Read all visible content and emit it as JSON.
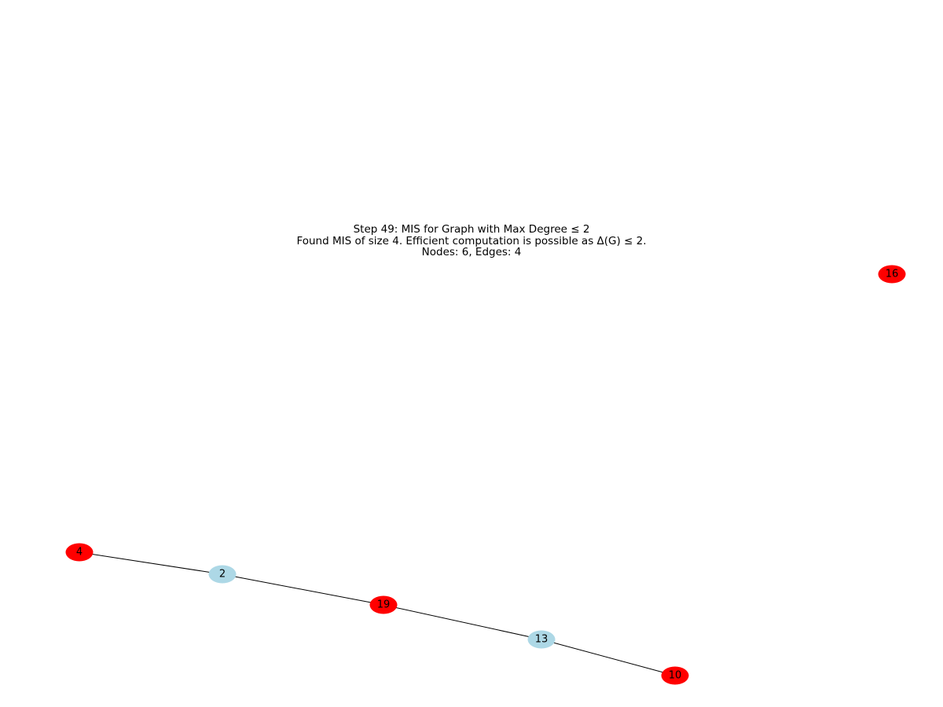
{
  "title": {
    "line1": "Step 49: MIS for Graph with Max Degree ≤ 2",
    "line2": "Found MIS of size 4. Efficient computation is possible as Δ(G) ≤ 2.",
    "line3": "Nodes: 6, Edges: 4"
  },
  "colors": {
    "mis_node": "#ff0000",
    "other_node": "#add8e6",
    "edge": "#000000"
  },
  "graph": {
    "nodes": [
      {
        "id": "4",
        "in_mis": true
      },
      {
        "id": "2",
        "in_mis": false
      },
      {
        "id": "19",
        "in_mis": true
      },
      {
        "id": "13",
        "in_mis": false
      },
      {
        "id": "10",
        "in_mis": true
      },
      {
        "id": "16",
        "in_mis": true
      }
    ],
    "edges": [
      [
        "4",
        "2"
      ],
      [
        "2",
        "19"
      ],
      [
        "19",
        "13"
      ],
      [
        "13",
        "10"
      ]
    ]
  }
}
